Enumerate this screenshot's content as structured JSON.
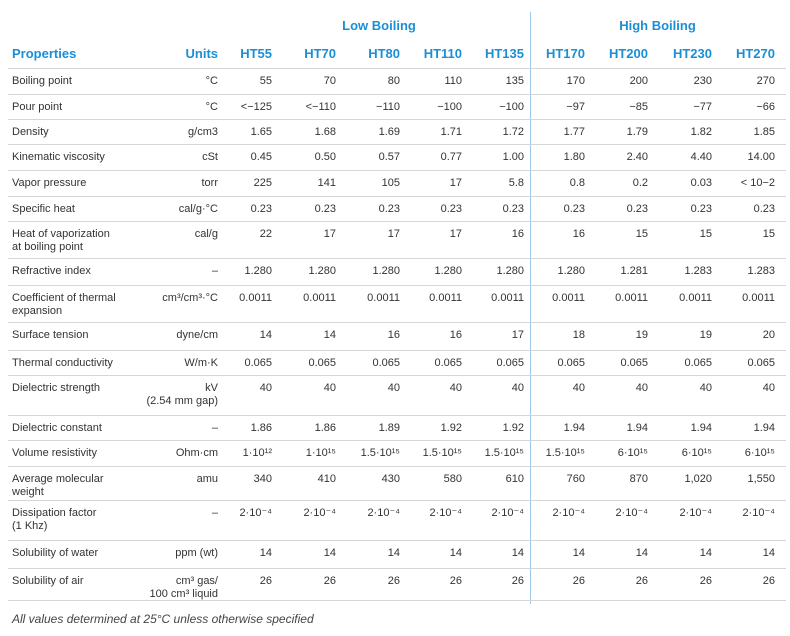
{
  "table": {
    "groups": [
      "Low Boiling",
      "High Boiling"
    ],
    "header": [
      "Properties",
      "Units",
      "HT55",
      "HT70",
      "HT80",
      "HT110",
      "HT135",
      "HT170",
      "HT200",
      "HT230",
      "HT270"
    ],
    "rows": [
      {
        "label": "Boiling point",
        "units": "°C",
        "values": [
          "55",
          "70",
          "80",
          "110",
          "135",
          "170",
          "200",
          "230",
          "270"
        ]
      },
      {
        "label": "Pour point",
        "units": "°C",
        "values": [
          "<−125",
          "<−110",
          "−110",
          "−100",
          "−100",
          "−97",
          "−85",
          "−77",
          "−66"
        ]
      },
      {
        "label": "Density",
        "units": "g/cm3",
        "values": [
          "1.65",
          "1.68",
          "1.69",
          "1.71",
          "1.72",
          "1.77",
          "1.79",
          "1.82",
          "1.85"
        ]
      },
      {
        "label": "Kinematic viscosity",
        "units": "cSt",
        "values": [
          "0.45",
          "0.50",
          "0.57",
          "0.77",
          "1.00",
          "1.80",
          "2.40",
          "4.40",
          "14.00"
        ]
      },
      {
        "label": "Vapor pressure",
        "units": "torr",
        "values": [
          "225",
          "141",
          "105",
          "17",
          "5.8",
          "0.8",
          "0.2",
          "0.03",
          "< 10−2"
        ]
      },
      {
        "label": "Specific heat",
        "units": "cal/g·°C",
        "values": [
          "0.23",
          "0.23",
          "0.23",
          "0.23",
          "0.23",
          "0.23",
          "0.23",
          "0.23",
          "0.23"
        ]
      },
      {
        "label": "Heat of vaporization\nat boiling point",
        "units": "cal/g",
        "values": [
          "22",
          "17",
          "17",
          "17",
          "16",
          "16",
          "15",
          "15",
          "15"
        ]
      },
      {
        "label": "Refractive index",
        "units": "–",
        "values": [
          "1.280",
          "1.280",
          "1.280",
          "1.280",
          "1.280",
          "1.280",
          "1.281",
          "1.283",
          "1.283"
        ]
      },
      {
        "label": "Coefficient of thermal\nexpansion",
        "units": "cm³/cm³·°C",
        "values": [
          "0.0011",
          "0.0011",
          "0.0011",
          "0.0011",
          "0.0011",
          "0.0011",
          "0.0011",
          "0.0011",
          "0.0011"
        ]
      },
      {
        "label": "Surface tension",
        "units": "dyne/cm",
        "values": [
          "14",
          "14",
          "16",
          "16",
          "17",
          "18",
          "19",
          "19",
          "20"
        ]
      },
      {
        "label": "Thermal conductivity",
        "units": "W/m·K",
        "values": [
          "0.065",
          "0.065",
          "0.065",
          "0.065",
          "0.065",
          "0.065",
          "0.065",
          "0.065",
          "0.065"
        ]
      },
      {
        "label": "Dielectric strength",
        "units": "kV\n(2.54 mm gap)",
        "values": [
          "40",
          "40",
          "40",
          "40",
          "40",
          "40",
          "40",
          "40",
          "40"
        ]
      },
      {
        "label": "Dielectric constant",
        "units": "–",
        "values": [
          "1.86",
          "1.86",
          "1.89",
          "1.92",
          "1.92",
          "1.94",
          "1.94",
          "1.94",
          "1.94"
        ]
      },
      {
        "label": "Volume resistivity",
        "units": "Ohm·cm",
        "values": [
          "1·10¹²",
          "1·10¹⁵",
          "1.5·10¹⁵",
          "1.5·10¹⁵",
          "1.5·10¹⁵",
          "1.5·10¹⁵",
          "6·10¹⁵",
          "6·10¹⁵",
          "6·10¹⁵"
        ]
      },
      {
        "label": "Average molecular\nweight",
        "units": "amu",
        "values": [
          "340",
          "410",
          "430",
          "580",
          "610",
          "760",
          "870",
          "1,020",
          "1,550"
        ]
      },
      {
        "label": "Dissipation factor\n(1 Khz)",
        "units": "–",
        "values": [
          "2·10⁻⁴",
          "2·10⁻⁴",
          "2·10⁻⁴",
          "2·10⁻⁴",
          "2·10⁻⁴",
          "2·10⁻⁴",
          "2·10⁻⁴",
          "2·10⁻⁴",
          "2·10⁻⁴"
        ]
      },
      {
        "label": "Solubility of water",
        "units": "ppm (wt)",
        "values": [
          "14",
          "14",
          "14",
          "14",
          "14",
          "14",
          "14",
          "14",
          "14"
        ]
      },
      {
        "label": "Solubility of air",
        "units": "cm³ gas/\n100 cm³ liquid",
        "values": [
          "26",
          "26",
          "26",
          "26",
          "26",
          "26",
          "26",
          "26",
          "26"
        ]
      }
    ],
    "footnote": "All values determined at 25°C unless otherwise specified"
  }
}
